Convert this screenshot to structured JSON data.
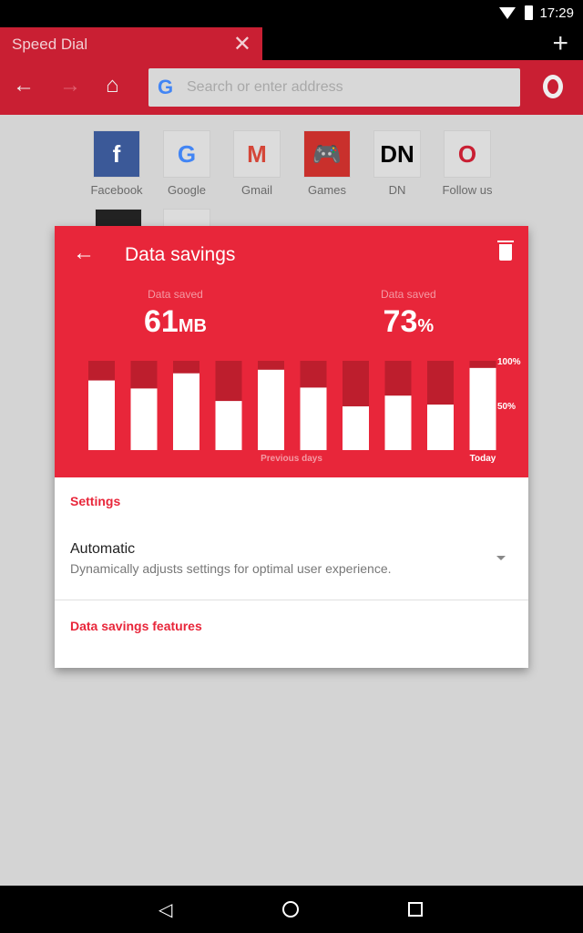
{
  "status": {
    "time": "17:29"
  },
  "tab": {
    "title": "Speed Dial"
  },
  "address": {
    "placeholder": "Search or enter address"
  },
  "speed_dial": [
    {
      "label": "Facebook",
      "icon": "f"
    },
    {
      "label": "Google",
      "icon": "G"
    },
    {
      "label": "Gmail",
      "icon": "M"
    },
    {
      "label": "Games",
      "icon": "gamepad"
    },
    {
      "label": "DN",
      "icon": "DN"
    },
    {
      "label": "Follow us",
      "icon": "opera-like"
    }
  ],
  "dialog": {
    "title": "Data savings",
    "stat1": {
      "label": "Data saved",
      "value": "61",
      "unit": "MB"
    },
    "stat2": {
      "label": "Data saved",
      "value": "73",
      "unit": "%"
    },
    "settings_header": "Settings",
    "option_title": "Automatic",
    "option_desc": "Dynamically adjusts settings for optimal user experience.",
    "features_header": "Data savings features"
  },
  "chart_data": {
    "type": "bar",
    "stacked": true,
    "categories": [
      "",
      "",
      "",
      "",
      "",
      "",
      "",
      "",
      "",
      "Today"
    ],
    "xlabel": "Previous days",
    "values": [
      78,
      69,
      86,
      55,
      90,
      70,
      49,
      61,
      51,
      92
    ],
    "ylim": [
      0,
      100
    ],
    "ytick_labels": [
      "50%",
      "100%"
    ],
    "colors": {
      "saved": "#ffffff",
      "remaining": "#bd1e2d",
      "background": "#e8263a"
    }
  }
}
